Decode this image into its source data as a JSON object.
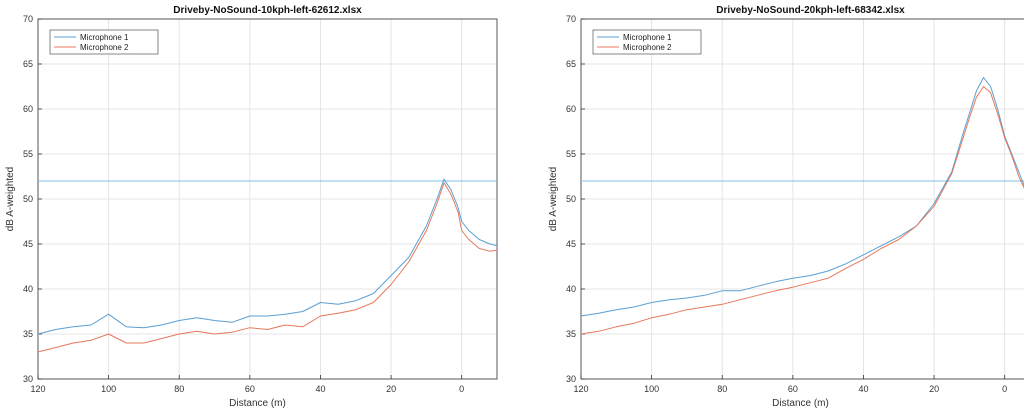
{
  "chart_data": [
    {
      "type": "line",
      "title": "Driveby-NoSound-10kph-left-62612.xlsx",
      "xlabel": "Distance (m)",
      "ylabel": "dB A-weighted",
      "xlim": [
        120,
        -10
      ],
      "x_reversed": true,
      "ylim": [
        30,
        70
      ],
      "xticks": [
        120,
        100,
        80,
        60,
        40,
        20,
        0
      ],
      "yticks": [
        30,
        35,
        40,
        45,
        50,
        55,
        60,
        65,
        70
      ],
      "grid": true,
      "legend_position": "top-left",
      "reference_line": 52,
      "series": [
        {
          "name": "Microphone 1",
          "color": "#5a9fd4",
          "x": [
            120,
            115,
            110,
            105,
            100,
            95,
            90,
            85,
            80,
            75,
            70,
            65,
            60,
            55,
            50,
            45,
            40,
            35,
            30,
            25,
            20,
            15,
            10,
            7,
            5,
            3,
            1,
            0,
            -2,
            -5,
            -8,
            -10
          ],
          "y": [
            35,
            35.5,
            35.8,
            36,
            37.2,
            35.8,
            35.7,
            36,
            36.5,
            36.8,
            36.5,
            36.3,
            37,
            37,
            37.2,
            37.5,
            38.5,
            38.3,
            38.7,
            39.5,
            41.5,
            43.5,
            47,
            50,
            52.2,
            51,
            49,
            47.5,
            46.5,
            45.5,
            45,
            44.8
          ]
        },
        {
          "name": "Microphone 2",
          "color": "#e8785a",
          "x": [
            120,
            115,
            110,
            105,
            100,
            95,
            90,
            85,
            80,
            75,
            70,
            65,
            60,
            55,
            50,
            45,
            40,
            35,
            30,
            25,
            20,
            15,
            10,
            7,
            5,
            3,
            1,
            0,
            -2,
            -5,
            -8,
            -10
          ],
          "y": [
            33,
            33.5,
            34,
            34.3,
            35,
            34,
            34,
            34.5,
            35,
            35.3,
            35,
            35.2,
            35.7,
            35.5,
            36,
            35.8,
            37,
            37.3,
            37.7,
            38.5,
            40.5,
            43,
            46.5,
            49.5,
            51.8,
            50.5,
            48.5,
            46.5,
            45.5,
            44.5,
            44.2,
            44.3
          ]
        }
      ]
    },
    {
      "type": "line",
      "title": "Driveby-NoSound-20kph-left-68342.xlsx",
      "xlabel": "Distance (m)",
      "ylabel": "dB A-weighted",
      "xlim": [
        120,
        -10
      ],
      "x_reversed": true,
      "ylim": [
        30,
        70
      ],
      "xticks": [
        120,
        100,
        80,
        60,
        40,
        20,
        0
      ],
      "yticks": [
        30,
        35,
        40,
        45,
        50,
        55,
        60,
        65,
        70
      ],
      "grid": true,
      "legend_position": "top-left",
      "reference_line": 52,
      "series": [
        {
          "name": "Microphone 1",
          "color": "#5a9fd4",
          "x": [
            120,
            115,
            110,
            105,
            100,
            95,
            90,
            85,
            80,
            75,
            70,
            65,
            60,
            55,
            50,
            45,
            40,
            35,
            30,
            25,
            20,
            15,
            12,
            10,
            8,
            6,
            4,
            2,
            0,
            -2,
            -4,
            -6,
            -8,
            -10
          ],
          "y": [
            37,
            37.3,
            37.7,
            38,
            38.5,
            38.8,
            39,
            39.3,
            39.8,
            39.8,
            40.3,
            40.8,
            41.2,
            41.5,
            42,
            42.8,
            43.8,
            44.8,
            45.8,
            47,
            49.5,
            53,
            57,
            59.5,
            62,
            63.5,
            62.5,
            60,
            57,
            55,
            53,
            51,
            50,
            49.3
          ]
        },
        {
          "name": "Microphone 2",
          "color": "#e8785a",
          "x": [
            120,
            115,
            110,
            105,
            100,
            95,
            90,
            85,
            80,
            75,
            70,
            65,
            60,
            55,
            50,
            45,
            40,
            35,
            30,
            25,
            20,
            15,
            12,
            10,
            8,
            6,
            4,
            2,
            0,
            -2,
            -4,
            -6,
            -8,
            -10
          ],
          "y": [
            35,
            35.3,
            35.8,
            36.2,
            36.8,
            37.2,
            37.7,
            38,
            38.3,
            38.8,
            39.3,
            39.8,
            40.2,
            40.7,
            41.2,
            42.3,
            43.3,
            44.5,
            45.5,
            47,
            49.2,
            52.8,
            56.5,
            59,
            61.3,
            62.5,
            61.8,
            59.5,
            56.8,
            54.8,
            52.5,
            50.8,
            49.5,
            48.8
          ]
        }
      ]
    }
  ]
}
